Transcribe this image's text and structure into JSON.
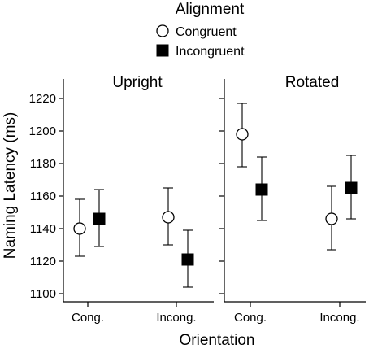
{
  "chart_data": {
    "type": "scatter",
    "legend": {
      "title": "Alignment",
      "placement": "top-center",
      "entries": [
        {
          "label": "Congruent",
          "marker": "open-circle"
        },
        {
          "label": "Incongruent",
          "marker": "filled-square"
        }
      ]
    },
    "ylabel": "Naming Latency (ms)",
    "xlabel": "Orientation",
    "ylim": [
      1095,
      1232
    ],
    "yticks": [
      1100,
      1120,
      1140,
      1160,
      1180,
      1200,
      1220
    ],
    "categories": [
      "Cong.",
      "Incong."
    ],
    "error_bars": true,
    "grid": false,
    "panels": [
      {
        "title": "Upright",
        "series": [
          {
            "name": "Congruent",
            "values": [
              1140,
              1147
            ],
            "err_low": [
              1123,
              1130
            ],
            "err_high": [
              1158,
              1165
            ]
          },
          {
            "name": "Incongruent",
            "values": [
              1146,
              1121
            ],
            "err_low": [
              1129,
              1104
            ],
            "err_high": [
              1164,
              1139
            ]
          }
        ]
      },
      {
        "title": "Rotated",
        "series": [
          {
            "name": "Congruent",
            "values": [
              1198,
              1146
            ],
            "err_low": [
              1178,
              1127
            ],
            "err_high": [
              1217,
              1166
            ]
          },
          {
            "name": "Incongruent",
            "values": [
              1164,
              1165
            ],
            "err_low": [
              1145,
              1146
            ],
            "err_high": [
              1184,
              1185
            ]
          }
        ]
      }
    ]
  }
}
